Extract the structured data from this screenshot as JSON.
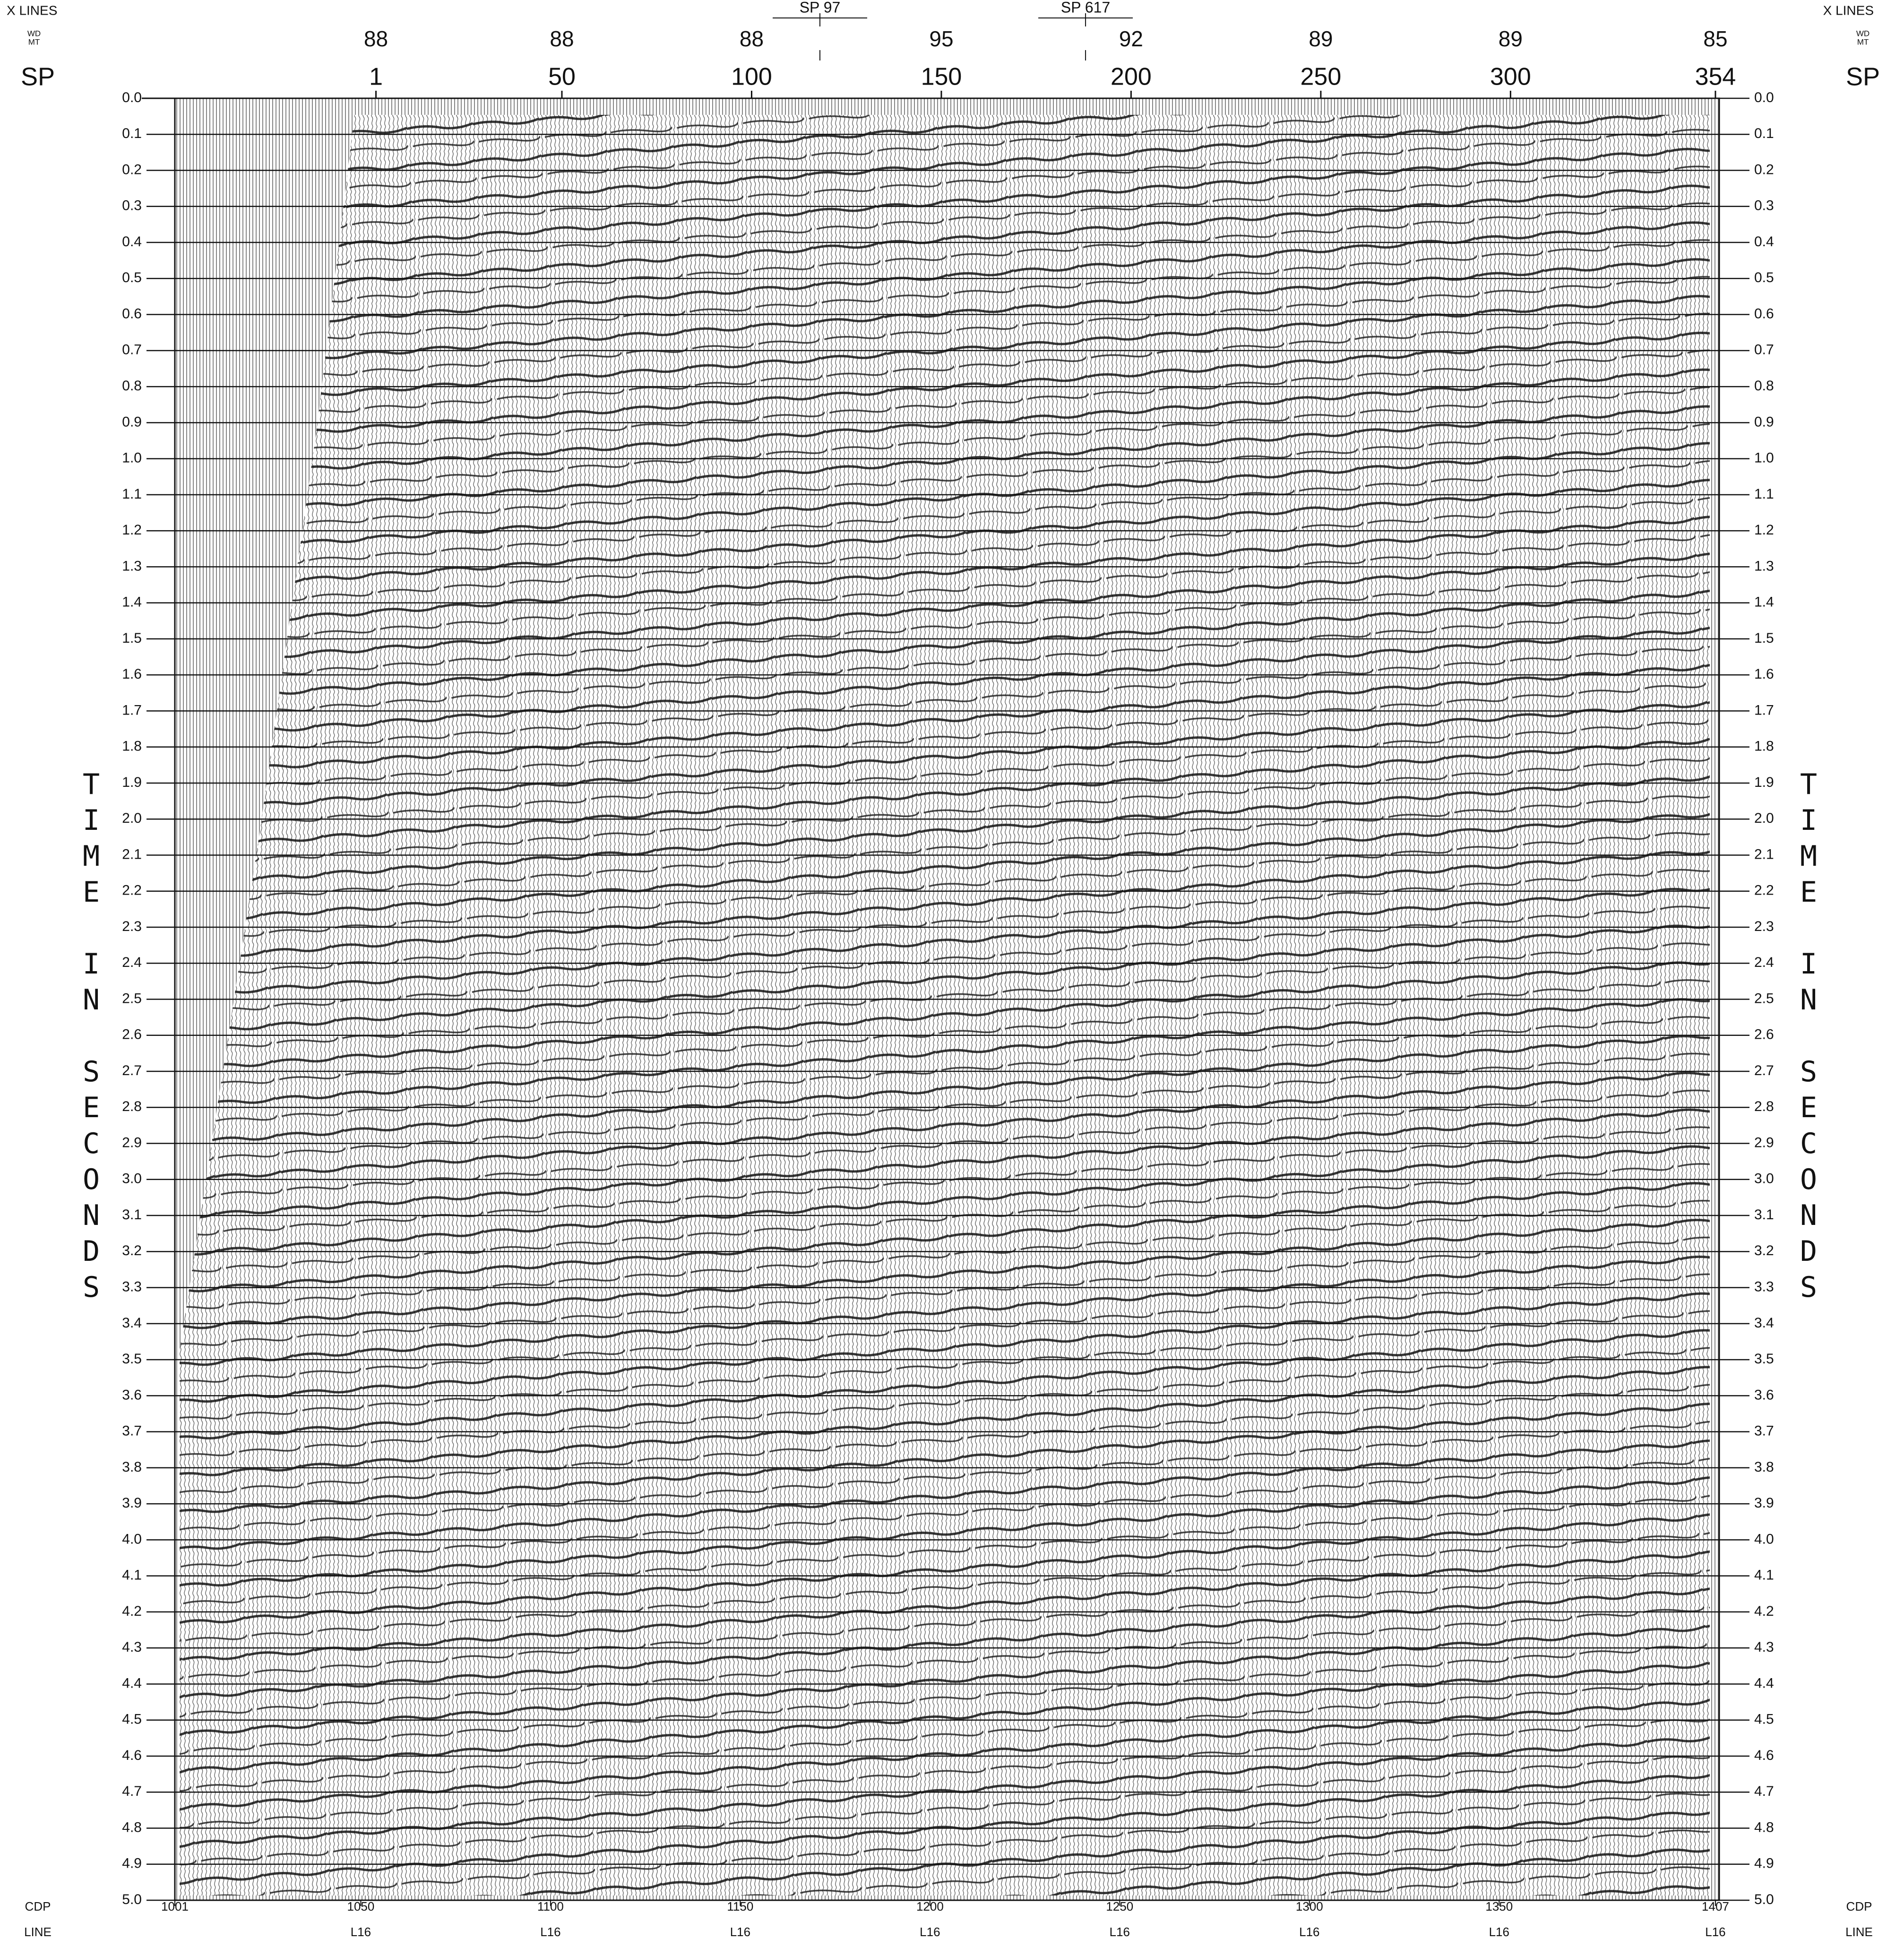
{
  "chart_data": {
    "type": "seismic",
    "x_lines_label": "X LINES",
    "depth_labels": [
      "WD",
      "MT"
    ],
    "x_axis_label": "SP",
    "y_label": "TIME IN SECONDS",
    "cdp_label": "CDP",
    "line_label": "LINE",
    "xlim": [
      -52,
      355
    ],
    "xticks": [
      1,
      50,
      100,
      150,
      200,
      250,
      300,
      354
    ],
    "xline_values": [
      88,
      88,
      88,
      95,
      92,
      89,
      89,
      85
    ],
    "x2lim": [
      1001,
      1408
    ],
    "x2ticks": [
      1001,
      1050,
      1100,
      1150,
      1200,
      1250,
      1300,
      1350,
      1407
    ],
    "line_labels": [
      null,
      "L16",
      "L16",
      "L16",
      "L16",
      "L16",
      "L16",
      "L16",
      "L16"
    ],
    "ylim": [
      0,
      5
    ],
    "yticks": [
      {
        "value": 0,
        "label": "0.0"
      },
      0.1,
      0.2,
      0.3,
      0.4,
      0.5,
      0.6,
      0.7,
      0.8,
      0.9,
      {
        "value": 1,
        "label": "1.0"
      },
      1.1,
      1.2,
      1.3,
      1.4,
      1.5,
      1.6,
      1.7,
      1.8,
      1.9,
      {
        "value": 2,
        "label": "2.0"
      },
      2.1,
      2.2,
      2.3,
      2.4,
      2.5,
      2.6,
      2.7,
      2.8,
      2.9,
      {
        "value": 3,
        "label": "3.0"
      },
      3.1,
      3.2,
      3.3,
      3.4,
      3.5,
      3.6,
      3.7,
      3.8,
      3.9,
      {
        "value": 4,
        "label": "4.0"
      },
      4.1,
      4.2,
      4.3,
      4.4,
      4.5,
      4.6,
      4.7,
      4.8,
      4.9,
      {
        "value": 5,
        "label": "5.0"
      }
    ],
    "crossings": [
      {
        "sp": 118,
        "label": "SP 97"
      },
      {
        "sp": 188,
        "label": "SP 617"
      }
    ],
    "grid": true,
    "trace_color": "#111111"
  }
}
